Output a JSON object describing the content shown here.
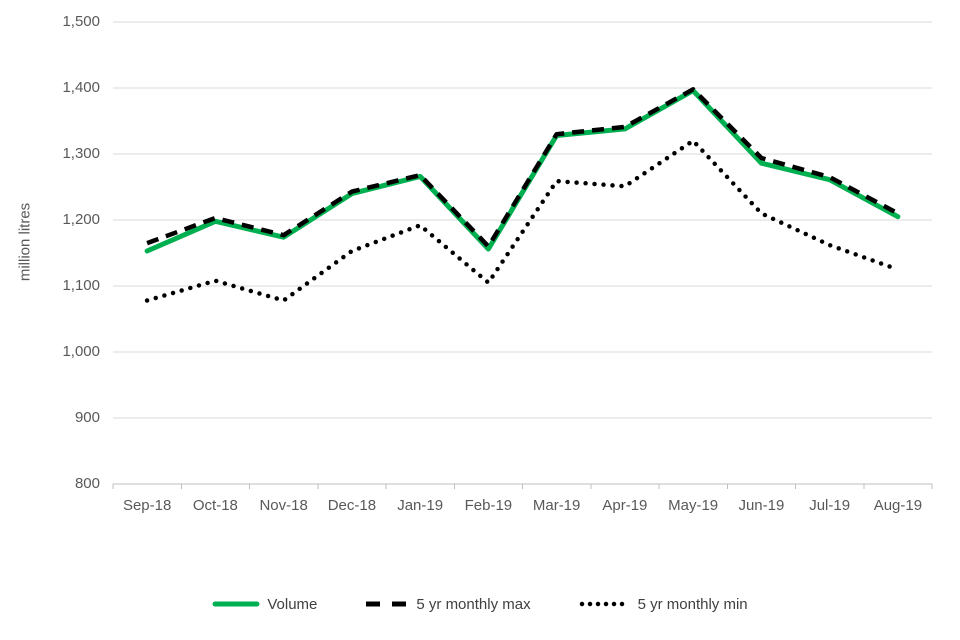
{
  "chart_data": {
    "type": "line",
    "title": "",
    "xlabel": "",
    "ylabel": "million litres",
    "ylim": [
      800,
      1500
    ],
    "ytick_step": 100,
    "yticklabels": [
      "800",
      "900",
      "1,000",
      "1,100",
      "1,200",
      "1,300",
      "1,400",
      "1,500"
    ],
    "categories": [
      "Sep-18",
      "Oct-18",
      "Nov-18",
      "Dec-18",
      "Jan-19",
      "Feb-19",
      "Mar-19",
      "Apr-19",
      "May-19",
      "Jun-19",
      "Jul-19",
      "Aug-19"
    ],
    "series": [
      {
        "name": "Volume",
        "style": "solid",
        "color": "#00B050",
        "values": [
          1153,
          1198,
          1174,
          1240,
          1266,
          1156,
          1328,
          1338,
          1396,
          1286,
          1261,
          1205
        ]
      },
      {
        "name": "5 yr monthly max",
        "style": "dashed",
        "color": "#000000",
        "values": [
          1165,
          1203,
          1177,
          1243,
          1268,
          1160,
          1330,
          1341,
          1398,
          1294,
          1265,
          1210
        ]
      },
      {
        "name": "5 yr monthly min",
        "style": "dotted",
        "color": "#000000",
        "values": [
          1078,
          1108,
          1078,
          1153,
          1192,
          1105,
          1259,
          1251,
          1320,
          1210,
          1162,
          1125
        ]
      }
    ],
    "grid": true,
    "legend_position": "bottom",
    "colors": {
      "gridline": "#D9D9D9",
      "axis_line": "#BFBFBF",
      "axis_text": "#595959",
      "legend_text": "#404040",
      "background": "#FFFFFF"
    }
  }
}
